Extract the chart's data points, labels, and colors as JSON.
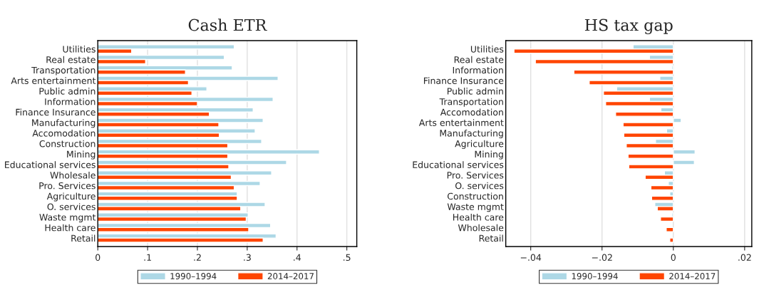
{
  "chart_data": [
    {
      "type": "bar",
      "orientation": "horizontal",
      "title": "Cash ETR",
      "categories": [
        "Utilities",
        "Real estate",
        "Transportation",
        "Arts entertainment",
        "Public admin",
        "Information",
        "Finance Insurance",
        "Manufacturing",
        "Accomodation",
        "Construction",
        "Mining",
        "Educational services",
        "Wholesale",
        "Pro. Services",
        "Agriculture",
        "O. services",
        "Waste mgmt",
        "Health care",
        "Retail"
      ],
      "series": [
        {
          "name": "1990–1994",
          "color": "#add8e6",
          "values": [
            0.274,
            0.254,
            0.27,
            0.362,
            0.219,
            0.352,
            0.312,
            0.332,
            0.316,
            0.329,
            0.445,
            0.379,
            0.349,
            0.326,
            0.28,
            0.336,
            0.302,
            0.347,
            0.358
          ]
        },
        {
          "name": "2014–2017",
          "color": "#ff4500",
          "values": [
            0.068,
            0.096,
            0.176,
            0.182,
            0.189,
            0.2,
            0.224,
            0.243,
            0.244,
            0.261,
            0.261,
            0.263,
            0.268,
            0.274,
            0.28,
            0.287,
            0.298,
            0.303,
            0.332
          ]
        }
      ],
      "xlim": [
        0,
        0.52
      ],
      "xticks": [
        0,
        {
          "value": 0.1,
          "label": ".1"
        },
        {
          "value": 0.2,
          "label": ".2"
        },
        {
          "value": 0.3,
          "label": ".3"
        },
        {
          "value": 0.4,
          "label": ".4"
        },
        {
          "value": 0.5,
          "label": ".5"
        }
      ],
      "grid": "x",
      "legend": "bottom"
    },
    {
      "type": "bar",
      "orientation": "horizontal",
      "title": "HS tax gap",
      "categories": [
        "Utilities",
        "Real estate",
        "Information",
        "Finance Insurance",
        "Public admin",
        "Transportation",
        "Accomodation",
        "Arts entertainment",
        "Manufacturing",
        "Agriculture",
        "Mining",
        "Educational services",
        "Pro. Services",
        "O. services",
        "Construction",
        "Waste mgmt",
        "Health care",
        "Wholesale",
        "Retail"
      ],
      "series": [
        {
          "name": "1990–1994",
          "color": "#add8e6",
          "values": [
            -0.0113,
            -0.0067,
            -0.0004,
            -0.0038,
            -0.0159,
            -0.0067,
            -0.0035,
            0.0022,
            -0.0019,
            -0.005,
            0.0061,
            0.0059,
            -0.0025,
            -0.0014,
            -0.001,
            -0.0052,
            -0.0004,
            null,
            null
          ]
        },
        {
          "name": "2014–2017",
          "color": "#ff4500",
          "values": [
            -0.0447,
            -0.0387,
            -0.0279,
            -0.0236,
            -0.0196,
            -0.019,
            -0.0162,
            -0.0141,
            -0.0139,
            -0.0132,
            -0.0127,
            -0.0125,
            -0.0079,
            -0.0063,
            -0.0061,
            -0.0045,
            -0.0036,
            -0.002,
            -0.001
          ]
        }
      ],
      "xlim": [
        -0.047,
        0.022
      ],
      "xticks": [
        {
          "value": -0.04,
          "label": "−.04"
        },
        {
          "value": -0.02,
          "label": "−.02"
        },
        0,
        {
          "value": 0.02,
          "label": ".02"
        }
      ],
      "grid": "x",
      "legend": "bottom"
    }
  ]
}
